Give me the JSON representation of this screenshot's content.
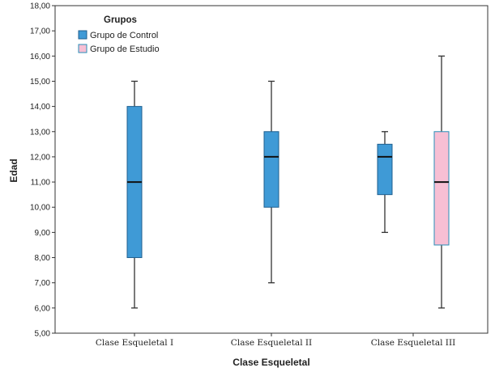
{
  "chart_data": {
    "type": "boxplot",
    "xlabel": "Clase Esqueletal",
    "ylabel": "Edad",
    "ylim": [
      5,
      18
    ],
    "yticks": [
      5,
      6,
      7,
      8,
      9,
      10,
      11,
      12,
      13,
      14,
      15,
      16,
      17,
      18
    ],
    "ytick_labels": [
      "5,00",
      "6,00",
      "7,00",
      "8,00",
      "9,00",
      "10,00",
      "11,00",
      "12,00",
      "13,00",
      "14,00",
      "15,00",
      "16,00",
      "17,00",
      "18,00"
    ],
    "categories": [
      "Clase Esqueletal I",
      "Clase Esqueletal II",
      "Clase Esqueletal III"
    ],
    "legend": {
      "title": "Grupos",
      "placement": "top-left",
      "entries": [
        "Grupo de Control",
        "Grupo de Estudio"
      ]
    },
    "series": [
      {
        "name": "Grupo de Control",
        "color": "#3f9ad6",
        "edge": "#1f5f8f",
        "boxes": [
          {
            "category": "Clase Esqueletal I",
            "min": 6,
            "q1": 8,
            "median": 11,
            "q3": 14,
            "max": 15
          },
          {
            "category": "Clase Esqueletal II",
            "min": 7,
            "q1": 10,
            "median": 12,
            "q3": 13,
            "max": 15
          },
          {
            "category": "Clase Esqueletal III",
            "min": 9,
            "q1": 10.5,
            "median": 12,
            "q3": 12.5,
            "max": 13
          }
        ]
      },
      {
        "name": "Grupo de Estudio",
        "color": "#f7bfd4",
        "edge": "#2a8fb8",
        "boxes": [
          {
            "category": "Clase Esqueletal III",
            "min": 6,
            "q1": 8.5,
            "median": 11,
            "q3": 13,
            "max": 16
          }
        ]
      }
    ]
  }
}
